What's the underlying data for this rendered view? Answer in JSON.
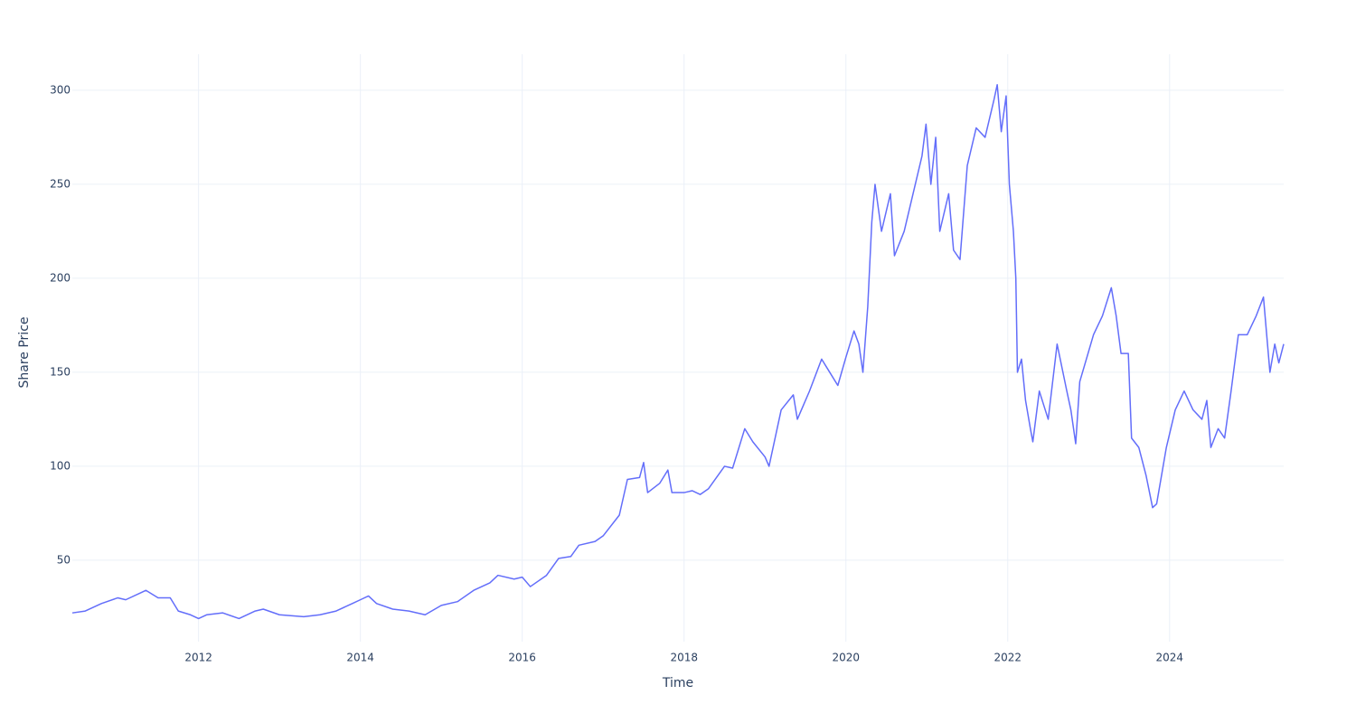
{
  "chart_data": {
    "type": "line",
    "x_label": "Time",
    "y_label": "Share Price",
    "x": [
      2010.44,
      2010.6,
      2010.8,
      2011.0,
      2011.1,
      2011.3,
      2011.35,
      2011.5,
      2011.65,
      2011.75,
      2011.9,
      2012.0,
      2012.1,
      2012.3,
      2012.5,
      2012.7,
      2012.8,
      2013.0,
      2013.3,
      2013.5,
      2013.7,
      2013.9,
      2014.0,
      2014.1,
      2014.2,
      2014.4,
      2014.6,
      2014.8,
      2015.0,
      2015.2,
      2015.4,
      2015.6,
      2015.7,
      2015.9,
      2016.0,
      2016.1,
      2016.3,
      2016.45,
      2016.6,
      2016.7,
      2016.9,
      2017.0,
      2017.2,
      2017.3,
      2017.45,
      2017.5,
      2017.55,
      2017.7,
      2017.8,
      2017.85,
      2018.0,
      2018.1,
      2018.2,
      2018.3,
      2018.5,
      2018.6,
      2018.75,
      2018.85,
      2019.0,
      2019.05,
      2019.2,
      2019.35,
      2019.4,
      2019.55,
      2019.7,
      2019.8,
      2019.9,
      2020.0,
      2020.1,
      2020.16,
      2020.21,
      2020.27,
      2020.32,
      2020.36,
      2020.44,
      2020.55,
      2020.6,
      2020.72,
      2020.83,
      2020.94,
      2020.99,
      2021.05,
      2021.11,
      2021.16,
      2021.27,
      2021.33,
      2021.41,
      2021.5,
      2021.61,
      2021.72,
      2021.83,
      2021.87,
      2021.92,
      2021.98,
      2022.02,
      2022.07,
      2022.1,
      2022.12,
      2022.17,
      2022.22,
      2022.28,
      2022.31,
      2022.39,
      2022.5,
      2022.61,
      2022.73,
      2022.78,
      2022.84,
      2022.89,
      2023.06,
      2023.17,
      2023.28,
      2023.34,
      2023.4,
      2023.49,
      2023.53,
      2023.62,
      2023.71,
      2023.79,
      2023.84,
      2023.96,
      2024.07,
      2024.18,
      2024.29,
      2024.4,
      2024.46,
      2024.51,
      2024.6,
      2024.68,
      2024.76,
      2024.85,
      2024.96,
      2025.07,
      2025.16,
      2025.24,
      2025.3,
      2025.35,
      2025.41
    ],
    "series": [
      {
        "color": "#636efa",
        "values": [
          22,
          23,
          27,
          30,
          29,
          33,
          34,
          30,
          30,
          23,
          21,
          19,
          21,
          22,
          19,
          23,
          24,
          21,
          20,
          21,
          23,
          27,
          29,
          31,
          27,
          24,
          23,
          21,
          26,
          28,
          34,
          38,
          42,
          40,
          41,
          36,
          42,
          51,
          52,
          58,
          60,
          63,
          74,
          93,
          94,
          102,
          86,
          91,
          98,
          86,
          86,
          87,
          85,
          88,
          100,
          99,
          120,
          113,
          105,
          100,
          130,
          138,
          125,
          140,
          157,
          150,
          143,
          158,
          172,
          165,
          150,
          185,
          230,
          250,
          225,
          245,
          212,
          225,
          245,
          265,
          282,
          250,
          275,
          225,
          245,
          215,
          210,
          260,
          280,
          275,
          295,
          303,
          278,
          297,
          250,
          225,
          200,
          150,
          157,
          135,
          120,
          113,
          140,
          125,
          165,
          140,
          130,
          112,
          145,
          170,
          180,
          195,
          180,
          160,
          160,
          115,
          110,
          95,
          78,
          80,
          110,
          130,
          140,
          130,
          125,
          135,
          110,
          120,
          115,
          140,
          170,
          170,
          180,
          190,
          150,
          165,
          155,
          165
        ]
      }
    ],
    "xlim": [
      2010.44,
      2025.41
    ],
    "xticks": [
      2012,
      2014,
      2016,
      2018,
      2020,
      2022,
      2024
    ],
    "ylim": [
      6.7,
      319.2
    ],
    "yticks": [
      50,
      100,
      150,
      200,
      250,
      300
    ],
    "grid": true
  }
}
